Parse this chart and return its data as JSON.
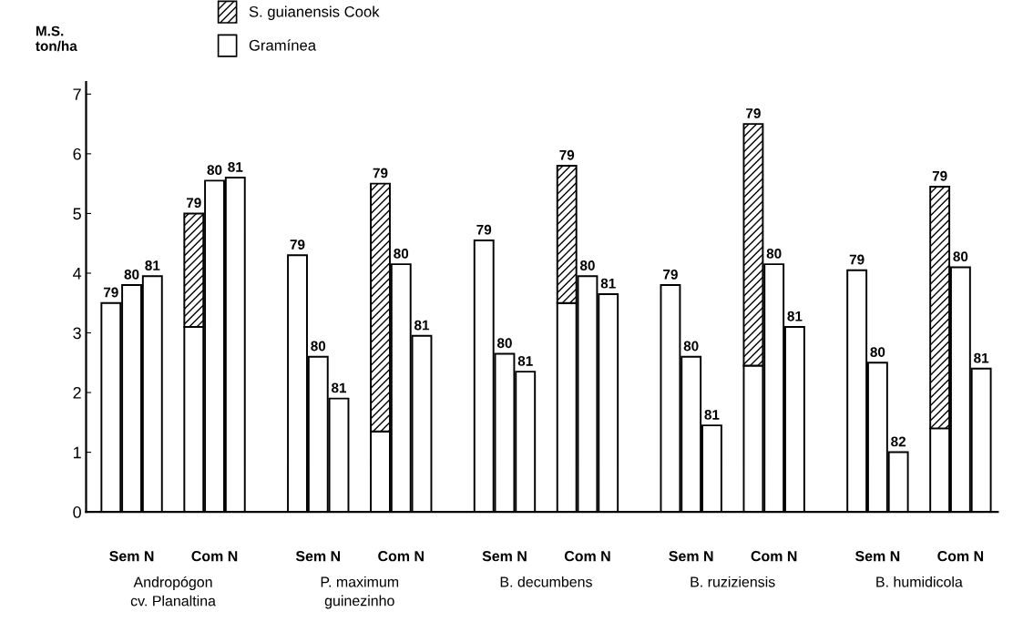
{
  "chart_data": {
    "type": "bar",
    "stacked": true,
    "ylabel": "M.S.\nton/ha",
    "categories": [
      "79",
      "80",
      "81",
      null,
      "79",
      "80",
      "81",
      null,
      null,
      "79",
      "80",
      "81",
      null,
      "79",
      "80",
      "81",
      null,
      null,
      "79",
      "80",
      "81",
      null,
      "79",
      "80",
      "81",
      null,
      null,
      "79",
      "80",
      "81",
      null,
      "79",
      "80",
      "81",
      null,
      null,
      "79",
      "80",
      "82",
      null,
      "79",
      "80",
      "81"
    ],
    "series": [
      {
        "name": "Gramínea",
        "color": "#ffffff",
        "values": [
          3.5,
          3.8,
          3.95,
          null,
          3.1,
          5.55,
          5.6,
          null,
          null,
          4.3,
          2.6,
          1.9,
          null,
          1.35,
          4.15,
          2.95,
          null,
          null,
          4.55,
          2.65,
          2.35,
          null,
          3.5,
          3.95,
          3.65,
          null,
          null,
          3.8,
          2.6,
          1.45,
          null,
          2.45,
          4.15,
          3.1,
          null,
          null,
          4.05,
          2.5,
          1.0,
          null,
          1.4,
          4.1,
          2.4
        ]
      },
      {
        "name": "S. guianensis Cook",
        "color": "#000000",
        "values": [
          null,
          null,
          null,
          null,
          1.9,
          null,
          null,
          null,
          null,
          null,
          null,
          null,
          null,
          4.15,
          null,
          null,
          null,
          null,
          null,
          null,
          null,
          null,
          2.3,
          null,
          null,
          null,
          null,
          null,
          null,
          null,
          null,
          4.05,
          null,
          null,
          null,
          null,
          null,
          null,
          null,
          null,
          4.05,
          null,
          null
        ]
      }
    ],
    "ylim": [
      0,
      7.2
    ],
    "yticks": [
      0,
      1,
      2,
      3,
      4,
      5,
      6,
      7
    ],
    "grid": false,
    "legend": "top left",
    "annotations": [
      "Sem N",
      "Com N",
      "Sem N",
      "Com N",
      "Sem N",
      "Com N",
      "Sem N",
      "Com N",
      "Sem N",
      "Com N",
      "Andropógon\ncv. Planaltina",
      "P. maximum\nguinezinho",
      "B. decumbens",
      "B. ruziziensis",
      "B. humidicola"
    ]
  }
}
